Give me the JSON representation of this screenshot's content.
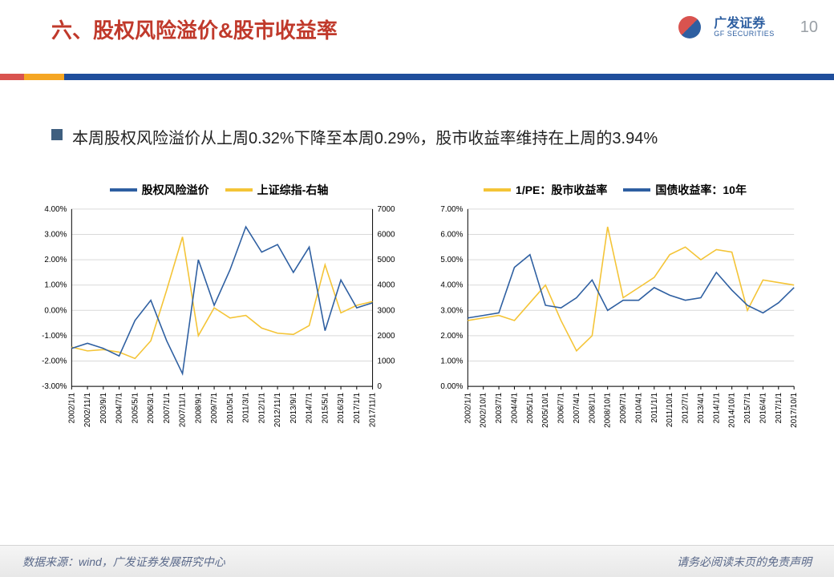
{
  "page": {
    "title": "六、股权风险溢价&股市收益率",
    "page_number": "10",
    "logo_cn": "广发证券",
    "logo_en": "GF SECURITIES"
  },
  "bullet": {
    "text": "本周股权风险溢价从上周0.32%下降至本周0.29%，股市收益率维持在上周的3.94%"
  },
  "footer": {
    "source": "数据来源：wind，广发证券发展研究中心",
    "disclaimer": "请务必阅读末页的免责声明"
  },
  "colors": {
    "series_blue": "#2e5fa1",
    "series_yellow": "#f4c436",
    "axis": "#000000",
    "grid": "#d9d9d9",
    "title_red": "#c0392b",
    "bullet_sq": "#3f5f7f",
    "page_bg": "#ffffff"
  },
  "chart_left": {
    "type": "line-dual-axis",
    "legend": [
      {
        "label": "股权风险溢价",
        "color": "#2e5fa1"
      },
      {
        "label": "上证综指-右轴",
        "color": "#f4c436"
      }
    ],
    "y_left": {
      "min": -3.0,
      "max": 4.0,
      "step": 1.0,
      "fmt_suffix": ".00%"
    },
    "y_right": {
      "min": 0,
      "max": 7000,
      "step": 1000
    },
    "x_labels": [
      "2002/1/1",
      "2002/11/1",
      "2003/9/1",
      "2004/7/1",
      "2005/5/1",
      "2006/3/1",
      "2007/1/1",
      "2007/11/1",
      "2008/9/1",
      "2009/7/1",
      "2010/5/1",
      "2011/3/1",
      "2012/1/1",
      "2012/11/1",
      "2013/9/1",
      "2014/7/1",
      "2015/5/1",
      "2016/3/1",
      "2017/1/1",
      "2017/11/1"
    ],
    "series_blue": [
      -1.5,
      -1.3,
      -1.5,
      -1.8,
      -0.4,
      0.4,
      -1.2,
      -2.5,
      2.0,
      0.2,
      1.6,
      3.3,
      2.3,
      2.6,
      1.5,
      2.5,
      -0.8,
      1.2,
      0.1,
      0.3
    ],
    "series_yellow": [
      1550,
      1400,
      1450,
      1350,
      1100,
      1800,
      3800,
      5900,
      2000,
      3100,
      2700,
      2800,
      2300,
      2100,
      2050,
      2400,
      4800,
      2900,
      3200,
      3350
    ],
    "line_width": 1.6,
    "label_fontsize": 11,
    "tick_fontsize": 10
  },
  "chart_right": {
    "type": "line",
    "legend": [
      {
        "label": "1/PE：股市收益率",
        "color": "#f4c436"
      },
      {
        "label": "国债收益率：10年",
        "color": "#2e5fa1"
      }
    ],
    "y": {
      "min": 0.0,
      "max": 7.0,
      "step": 1.0,
      "fmt_suffix": ".00%"
    },
    "x_labels": [
      "2002/1/1",
      "2002/10/1",
      "2003/7/1",
      "2004/4/1",
      "2005/1/1",
      "2005/10/1",
      "2006/7/1",
      "2007/4/1",
      "2008/1/1",
      "2008/10/1",
      "2009/7/1",
      "2010/4/1",
      "2011/1/1",
      "2011/10/1",
      "2012/7/1",
      "2013/4/1",
      "2014/1/1",
      "2014/10/1",
      "2015/7/1",
      "2016/4/1",
      "2017/1/1",
      "2017/10/1"
    ],
    "series_yellow": [
      2.6,
      2.7,
      2.8,
      2.6,
      3.3,
      4.0,
      2.6,
      1.4,
      2.0,
      6.3,
      3.5,
      3.9,
      4.3,
      5.2,
      5.5,
      5.0,
      5.4,
      5.3,
      3.0,
      4.2,
      4.1,
      4.0
    ],
    "series_blue": [
      2.7,
      2.8,
      2.9,
      4.7,
      5.2,
      3.2,
      3.1,
      3.5,
      4.2,
      3.0,
      3.4,
      3.4,
      3.9,
      3.6,
      3.4,
      3.5,
      4.5,
      3.8,
      3.2,
      2.9,
      3.3,
      3.9
    ],
    "line_width": 1.6,
    "label_fontsize": 11,
    "tick_fontsize": 10
  }
}
